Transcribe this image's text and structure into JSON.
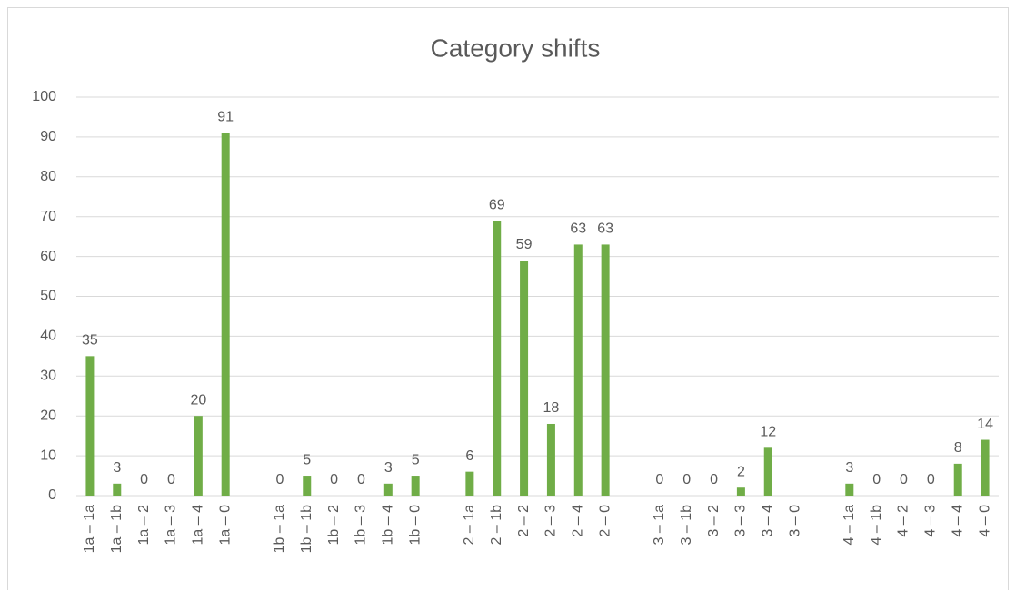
{
  "chart_data": {
    "type": "bar",
    "title": "Category shifts",
    "categories": [
      "1a – 1a",
      "1a – 1b",
      "1a – 2",
      "1a – 3",
      "1a – 4",
      "1a – 0",
      null,
      "1b – 1a",
      "1b – 1b",
      "1b – 2",
      "1b – 3",
      "1b – 4",
      "1b – 0",
      null,
      "2 – 1a",
      "2 – 1b",
      "2 – 2",
      "2 – 3",
      "2 – 4",
      "2 – 0",
      null,
      "3 – 1a",
      "3 – 1b",
      "3 – 2",
      "3 – 3",
      "3 – 4",
      "3 – 0",
      null,
      "4 – 1a",
      "4 – 1b",
      "4 – 2",
      "4 – 3",
      "4 – 4",
      "4 – 0"
    ],
    "values": [
      35,
      3,
      0,
      0,
      20,
      91,
      null,
      0,
      5,
      0,
      0,
      3,
      5,
      null,
      6,
      69,
      59,
      18,
      63,
      63,
      null,
      0,
      0,
      0,
      2,
      12,
      null,
      null,
      3,
      0,
      0,
      0,
      8,
      14
    ],
    "color": "#70ad47",
    "ylim": [
      0,
      100
    ],
    "yticks": [
      0,
      10,
      20,
      30,
      40,
      50,
      60,
      70,
      80,
      90,
      100
    ],
    "grid": true
  }
}
